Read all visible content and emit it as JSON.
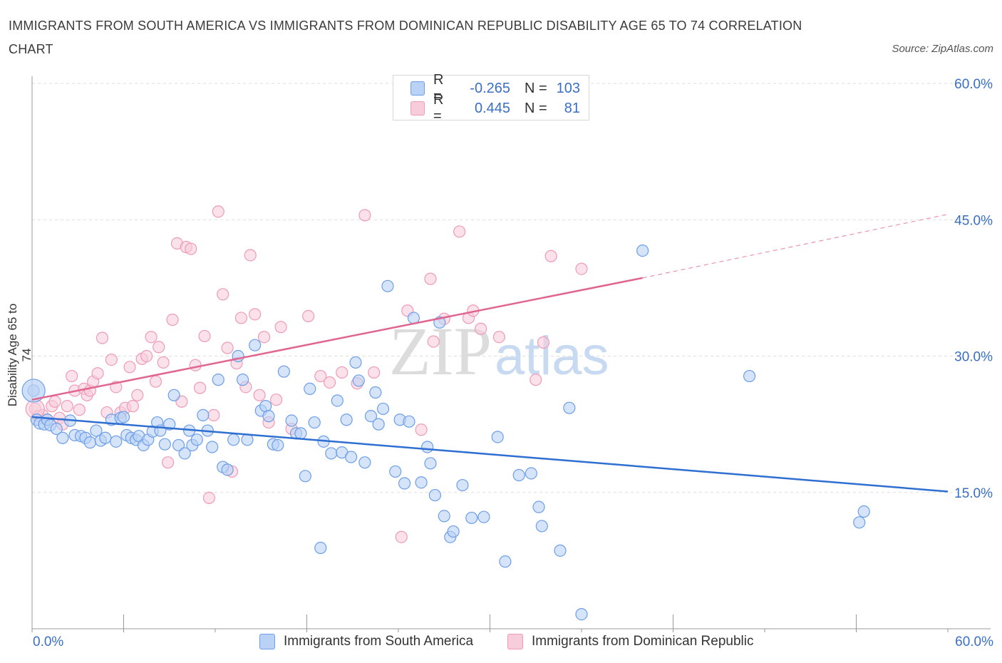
{
  "title": "IMMIGRANTS FROM SOUTH AMERICA VS IMMIGRANTS FROM DOMINICAN REPUBLIC DISABILITY AGE 65 TO 74 CORRELATION CHART",
  "source": "Source: ZipAtlas.com",
  "watermark": "ZIPatlas",
  "chart_data": {
    "type": "scatter",
    "ylabel": "Disability Age 65 to 74",
    "xlim": [
      0,
      60
    ],
    "ylim": [
      0,
      60
    ],
    "y_ticks": [
      "60.0%",
      "45.0%",
      "30.0%",
      "15.0%"
    ],
    "y_tick_values": [
      60,
      45,
      30,
      15
    ],
    "x_tick_labels": [
      "0.0%",
      "60.0%"
    ],
    "legend_placement": "bottom",
    "grid": true,
    "stats": [
      {
        "r_label": "R =",
        "r": "-0.265",
        "n_label": "N =",
        "n": "103"
      },
      {
        "r_label": "R =",
        "r": "0.445",
        "n_label": "N =",
        "n": "81"
      }
    ],
    "series": [
      {
        "name": "Immigrants from South America",
        "color": "#6d9ee8",
        "fill": "#b9d2f5",
        "trend": {
          "x": [
            0,
            60
          ],
          "y": [
            23.3,
            15.1
          ],
          "color": "#2f6fd1"
        },
        "points": [
          [
            0.1,
            26.2
          ],
          [
            0.3,
            23.0
          ],
          [
            0.5,
            22.6
          ],
          [
            0.8,
            22.5
          ],
          [
            1.0,
            23.0
          ],
          [
            1.2,
            22.4
          ],
          [
            1.6,
            22.0
          ],
          [
            2.0,
            21.0
          ],
          [
            2.5,
            22.9
          ],
          [
            2.8,
            21.3
          ],
          [
            3.2,
            21.2
          ],
          [
            3.5,
            21.0
          ],
          [
            3.8,
            20.5
          ],
          [
            4.2,
            21.8
          ],
          [
            4.5,
            20.7
          ],
          [
            4.8,
            21.0
          ],
          [
            5.2,
            23.0
          ],
          [
            5.5,
            20.6
          ],
          [
            5.8,
            23.2
          ],
          [
            6.0,
            23.3
          ],
          [
            6.2,
            21.3
          ],
          [
            6.5,
            21.0
          ],
          [
            6.8,
            20.8
          ],
          [
            7.0,
            21.2
          ],
          [
            7.3,
            20.2
          ],
          [
            7.6,
            20.8
          ],
          [
            7.9,
            21.7
          ],
          [
            8.2,
            22.7
          ],
          [
            8.4,
            21.8
          ],
          [
            8.7,
            20.3
          ],
          [
            9.0,
            22.5
          ],
          [
            9.3,
            25.7
          ],
          [
            9.6,
            20.2
          ],
          [
            10.0,
            19.3
          ],
          [
            10.3,
            21.8
          ],
          [
            10.5,
            20.2
          ],
          [
            10.8,
            20.8
          ],
          [
            11.2,
            23.5
          ],
          [
            11.5,
            21.8
          ],
          [
            11.8,
            20.0
          ],
          [
            12.2,
            27.4
          ],
          [
            12.5,
            17.8
          ],
          [
            12.8,
            17.5
          ],
          [
            13.2,
            20.8
          ],
          [
            13.5,
            30.0
          ],
          [
            13.8,
            27.4
          ],
          [
            14.1,
            20.8
          ],
          [
            14.6,
            31.2
          ],
          [
            15.0,
            24.0
          ],
          [
            15.3,
            24.5
          ],
          [
            15.5,
            23.4
          ],
          [
            15.8,
            20.3
          ],
          [
            16.1,
            20.2
          ],
          [
            16.5,
            28.3
          ],
          [
            17.0,
            22.9
          ],
          [
            17.3,
            21.5
          ],
          [
            17.6,
            21.5
          ],
          [
            17.9,
            16.8
          ],
          [
            18.2,
            26.4
          ],
          [
            18.5,
            22.7
          ],
          [
            18.9,
            8.9
          ],
          [
            19.1,
            20.6
          ],
          [
            19.6,
            19.3
          ],
          [
            20.0,
            25.1
          ],
          [
            20.3,
            19.4
          ],
          [
            20.6,
            23.0
          ],
          [
            20.9,
            18.9
          ],
          [
            21.2,
            29.3
          ],
          [
            21.4,
            27.3
          ],
          [
            21.8,
            18.3
          ],
          [
            22.2,
            23.4
          ],
          [
            22.5,
            26.0
          ],
          [
            22.7,
            22.5
          ],
          [
            23.0,
            24.2
          ],
          [
            23.3,
            37.7
          ],
          [
            23.8,
            17.3
          ],
          [
            24.1,
            23.0
          ],
          [
            24.4,
            16.0
          ],
          [
            24.7,
            22.8
          ],
          [
            25.0,
            34.2
          ],
          [
            25.5,
            16.1
          ],
          [
            25.9,
            20.0
          ],
          [
            26.1,
            18.2
          ],
          [
            26.4,
            14.7
          ],
          [
            26.7,
            33.7
          ],
          [
            27.0,
            12.4
          ],
          [
            27.4,
            10.1
          ],
          [
            27.6,
            10.7
          ],
          [
            28.2,
            15.8
          ],
          [
            28.8,
            12.2
          ],
          [
            29.6,
            12.3
          ],
          [
            30.5,
            21.1
          ],
          [
            31.0,
            7.4
          ],
          [
            31.9,
            16.9
          ],
          [
            32.7,
            17.1
          ],
          [
            33.2,
            13.4
          ],
          [
            33.4,
            11.3
          ],
          [
            34.6,
            8.6
          ],
          [
            35.2,
            24.3
          ],
          [
            36.0,
            1.6
          ],
          [
            40.0,
            41.6
          ],
          [
            47.0,
            27.8
          ],
          [
            54.5,
            12.9
          ],
          [
            54.2,
            11.7
          ]
        ]
      },
      {
        "name": "Immigrants from Dominican Republic",
        "color": "#ee9bb8",
        "fill": "#f8cddb",
        "trend": {
          "x": [
            0,
            40
          ],
          "y": [
            25.2,
            38.6
          ],
          "color": "#e0658f"
        },
        "trend_dashed": {
          "x": [
            40,
            60
          ],
          "y": [
            38.6,
            45.6
          ]
        },
        "points": [
          [
            0.2,
            24.2
          ],
          [
            0.4,
            23.4
          ],
          [
            0.7,
            23.5
          ],
          [
            1.0,
            23.0
          ],
          [
            1.3,
            24.5
          ],
          [
            1.5,
            25.0
          ],
          [
            1.8,
            23.2
          ],
          [
            2.0,
            22.5
          ],
          [
            2.3,
            24.5
          ],
          [
            2.6,
            27.8
          ],
          [
            2.8,
            26.2
          ],
          [
            3.1,
            24.1
          ],
          [
            3.4,
            26.4
          ],
          [
            3.6,
            25.7
          ],
          [
            3.8,
            26.2
          ],
          [
            4.0,
            27.2
          ],
          [
            4.3,
            28.1
          ],
          [
            4.6,
            32.0
          ],
          [
            4.9,
            23.8
          ],
          [
            5.2,
            29.6
          ],
          [
            5.5,
            26.6
          ],
          [
            5.8,
            23.8
          ],
          [
            6.1,
            24.3
          ],
          [
            6.4,
            28.8
          ],
          [
            6.6,
            24.5
          ],
          [
            6.9,
            25.7
          ],
          [
            7.2,
            29.7
          ],
          [
            7.5,
            30.0
          ],
          [
            7.8,
            32.1
          ],
          [
            8.1,
            27.2
          ],
          [
            8.3,
            31.0
          ],
          [
            8.6,
            29.3
          ],
          [
            8.9,
            18.3
          ],
          [
            9.2,
            34.0
          ],
          [
            9.5,
            42.4
          ],
          [
            9.8,
            25.0
          ],
          [
            10.1,
            42.0
          ],
          [
            10.4,
            41.8
          ],
          [
            10.7,
            29.0
          ],
          [
            11.0,
            26.5
          ],
          [
            11.3,
            32.2
          ],
          [
            11.6,
            14.4
          ],
          [
            11.9,
            23.5
          ],
          [
            12.2,
            45.9
          ],
          [
            12.5,
            36.8
          ],
          [
            12.8,
            30.9
          ],
          [
            13.1,
            17.3
          ],
          [
            13.4,
            29.2
          ],
          [
            13.7,
            34.2
          ],
          [
            14.0,
            26.6
          ],
          [
            14.3,
            41.1
          ],
          [
            14.6,
            34.6
          ],
          [
            14.9,
            25.7
          ],
          [
            15.2,
            32.1
          ],
          [
            15.5,
            22.7
          ],
          [
            16.0,
            25.2
          ],
          [
            16.3,
            33.2
          ],
          [
            17.0,
            22.0
          ],
          [
            18.1,
            34.4
          ],
          [
            18.9,
            27.8
          ],
          [
            19.5,
            27.1
          ],
          [
            20.3,
            28.2
          ],
          [
            21.3,
            27.0
          ],
          [
            21.8,
            45.5
          ],
          [
            22.4,
            28.2
          ],
          [
            24.2,
            10.1
          ],
          [
            24.6,
            35.0
          ],
          [
            25.5,
            21.9
          ],
          [
            26.1,
            38.5
          ],
          [
            26.3,
            31.6
          ],
          [
            27.0,
            34.1
          ],
          [
            28.0,
            43.7
          ],
          [
            28.6,
            34.2
          ],
          [
            28.9,
            35.0
          ],
          [
            29.4,
            33.0
          ],
          [
            30.6,
            32.1
          ],
          [
            33.0,
            27.4
          ],
          [
            33.5,
            31.5
          ],
          [
            34.0,
            41.0
          ],
          [
            36.0,
            39.6
          ],
          [
            35.6,
            57.8
          ]
        ]
      }
    ]
  }
}
